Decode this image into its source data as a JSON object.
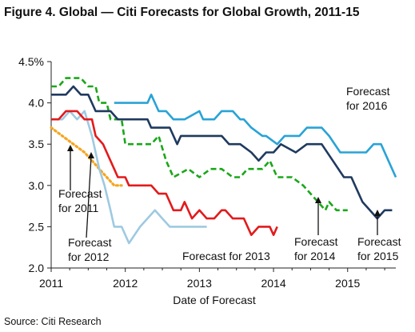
{
  "title": "Figure 4. Global — Citi Forecasts for Global Growth, 2011-15",
  "source": "Source: Citi Research",
  "chart_data": {
    "type": "line",
    "xlabel": "Date of Forecast",
    "ylabel": "",
    "xlim": [
      2011.0,
      2015.65
    ],
    "ylim": [
      2.0,
      4.5
    ],
    "x_ticks": [
      2011,
      2012,
      2013,
      2014,
      2015
    ],
    "x_tick_labels": [
      "2011",
      "2012",
      "2013",
      "2014",
      "2015"
    ],
    "y_ticks": [
      2.0,
      2.5,
      3.0,
      3.5,
      4.0,
      4.5
    ],
    "y_tick_labels": [
      "2.0",
      "2.5",
      "3.0",
      "3.5",
      "4.0",
      "4.5%"
    ],
    "series": [
      {
        "name": "Forecast for 2011",
        "color": "#f5a623",
        "style": "dotted",
        "points": [
          [
            2011.0,
            3.7
          ],
          [
            2011.15,
            3.6
          ],
          [
            2011.3,
            3.5
          ],
          [
            2011.45,
            3.4
          ],
          [
            2011.55,
            3.3
          ],
          [
            2011.65,
            3.2
          ],
          [
            2011.75,
            3.1
          ],
          [
            2011.85,
            3.0
          ],
          [
            2011.95,
            3.0
          ]
        ]
      },
      {
        "name": "Forecast for 2012",
        "color": "#9ecae1",
        "style": "solid",
        "points": [
          [
            2011.0,
            3.8
          ],
          [
            2011.15,
            3.8
          ],
          [
            2011.25,
            3.9
          ],
          [
            2011.35,
            3.8
          ],
          [
            2011.45,
            3.9
          ],
          [
            2011.55,
            3.6
          ],
          [
            2011.65,
            3.2
          ],
          [
            2011.72,
            3.0
          ],
          [
            2011.8,
            2.7
          ],
          [
            2011.85,
            2.5
          ],
          [
            2011.95,
            2.5
          ],
          [
            2012.05,
            2.3
          ],
          [
            2012.2,
            2.5
          ],
          [
            2012.4,
            2.7
          ],
          [
            2012.5,
            2.6
          ],
          [
            2012.6,
            2.5
          ],
          [
            2012.8,
            2.5
          ],
          [
            2013.0,
            2.5
          ],
          [
            2013.1,
            2.5
          ]
        ]
      },
      {
        "name": "Forecast for 2013",
        "color": "#e31a1c",
        "style": "solid",
        "points": [
          [
            2011.0,
            3.8
          ],
          [
            2011.1,
            3.8
          ],
          [
            2011.2,
            3.9
          ],
          [
            2011.35,
            3.9
          ],
          [
            2011.45,
            3.8
          ],
          [
            2011.55,
            3.8
          ],
          [
            2011.6,
            3.6
          ],
          [
            2011.7,
            3.5
          ],
          [
            2011.75,
            3.4
          ],
          [
            2011.85,
            3.2
          ],
          [
            2011.9,
            3.1
          ],
          [
            2012.0,
            3.1
          ],
          [
            2012.05,
            3.0
          ],
          [
            2012.35,
            3.0
          ],
          [
            2012.45,
            2.9
          ],
          [
            2012.55,
            2.9
          ],
          [
            2012.65,
            2.7
          ],
          [
            2012.75,
            2.7
          ],
          [
            2012.8,
            2.8
          ],
          [
            2012.9,
            2.6
          ],
          [
            2013.0,
            2.7
          ],
          [
            2013.1,
            2.6
          ],
          [
            2013.2,
            2.6
          ],
          [
            2013.3,
            2.7
          ],
          [
            2013.35,
            2.7
          ],
          [
            2013.45,
            2.6
          ],
          [
            2013.6,
            2.6
          ],
          [
            2013.7,
            2.4
          ],
          [
            2013.8,
            2.5
          ],
          [
            2013.95,
            2.5
          ],
          [
            2014.0,
            2.4
          ],
          [
            2014.05,
            2.5
          ]
        ]
      },
      {
        "name": "Forecast for 2014",
        "color": "#1aa71a",
        "style": "dashed",
        "points": [
          [
            2011.0,
            4.2
          ],
          [
            2011.1,
            4.2
          ],
          [
            2011.2,
            4.3
          ],
          [
            2011.4,
            4.3
          ],
          [
            2011.5,
            4.2
          ],
          [
            2011.6,
            4.2
          ],
          [
            2011.65,
            4.0
          ],
          [
            2011.75,
            4.0
          ],
          [
            2011.8,
            3.8
          ],
          [
            2011.95,
            3.8
          ],
          [
            2012.0,
            3.5
          ],
          [
            2012.35,
            3.5
          ],
          [
            2012.45,
            3.6
          ],
          [
            2012.55,
            3.3
          ],
          [
            2012.65,
            3.1
          ],
          [
            2012.85,
            3.2
          ],
          [
            2013.0,
            3.1
          ],
          [
            2013.15,
            3.2
          ],
          [
            2013.3,
            3.2
          ],
          [
            2013.45,
            3.1
          ],
          [
            2013.55,
            3.1
          ],
          [
            2013.65,
            3.2
          ],
          [
            2013.75,
            3.2
          ],
          [
            2013.85,
            3.2
          ],
          [
            2013.95,
            3.3
          ],
          [
            2014.05,
            3.1
          ],
          [
            2014.25,
            3.1
          ],
          [
            2014.4,
            3.0
          ],
          [
            2014.5,
            2.9
          ],
          [
            2014.6,
            2.8
          ],
          [
            2014.7,
            2.7
          ],
          [
            2014.75,
            2.8
          ],
          [
            2014.85,
            2.7
          ],
          [
            2015.0,
            2.7
          ]
        ]
      },
      {
        "name": "Forecast for 2015",
        "color": "#1f3a5f",
        "style": "solid",
        "points": [
          [
            2011.0,
            4.1
          ],
          [
            2011.2,
            4.1
          ],
          [
            2011.3,
            4.2
          ],
          [
            2011.4,
            4.1
          ],
          [
            2011.5,
            4.1
          ],
          [
            2011.6,
            3.9
          ],
          [
            2011.8,
            3.9
          ],
          [
            2011.9,
            3.8
          ],
          [
            2012.15,
            3.8
          ],
          [
            2012.3,
            3.8
          ],
          [
            2012.35,
            3.7
          ],
          [
            2012.6,
            3.7
          ],
          [
            2012.7,
            3.5
          ],
          [
            2012.75,
            3.6
          ],
          [
            2013.3,
            3.6
          ],
          [
            2013.4,
            3.5
          ],
          [
            2013.55,
            3.5
          ],
          [
            2013.7,
            3.4
          ],
          [
            2013.8,
            3.3
          ],
          [
            2013.9,
            3.4
          ],
          [
            2014.0,
            3.4
          ],
          [
            2014.1,
            3.5
          ],
          [
            2014.3,
            3.4
          ],
          [
            2014.45,
            3.5
          ],
          [
            2014.65,
            3.5
          ],
          [
            2014.8,
            3.3
          ],
          [
            2014.95,
            3.1
          ],
          [
            2015.05,
            3.1
          ],
          [
            2015.1,
            3.0
          ],
          [
            2015.2,
            2.8
          ],
          [
            2015.3,
            2.7
          ],
          [
            2015.4,
            2.6
          ],
          [
            2015.5,
            2.7
          ],
          [
            2015.6,
            2.7
          ]
        ]
      },
      {
        "name": "Forecast for 2016",
        "color": "#29a3d6",
        "style": "solid",
        "points": [
          [
            2011.85,
            4.0
          ],
          [
            2012.05,
            4.0
          ],
          [
            2012.15,
            4.0
          ],
          [
            2012.3,
            4.0
          ],
          [
            2012.35,
            4.1
          ],
          [
            2012.45,
            3.9
          ],
          [
            2012.55,
            3.9
          ],
          [
            2012.65,
            3.8
          ],
          [
            2012.8,
            3.8
          ],
          [
            2013.0,
            3.9
          ],
          [
            2013.05,
            3.8
          ],
          [
            2013.2,
            3.8
          ],
          [
            2013.3,
            3.9
          ],
          [
            2013.45,
            3.9
          ],
          [
            2013.55,
            3.8
          ],
          [
            2013.6,
            3.8
          ],
          [
            2013.7,
            3.7
          ],
          [
            2013.85,
            3.6
          ],
          [
            2013.9,
            3.6
          ],
          [
            2014.05,
            3.5
          ],
          [
            2014.15,
            3.6
          ],
          [
            2014.35,
            3.6
          ],
          [
            2014.45,
            3.7
          ],
          [
            2014.55,
            3.7
          ],
          [
            2014.65,
            3.7
          ],
          [
            2014.75,
            3.6
          ],
          [
            2014.9,
            3.4
          ],
          [
            2015.0,
            3.4
          ],
          [
            2015.25,
            3.4
          ],
          [
            2015.35,
            3.5
          ],
          [
            2015.45,
            3.5
          ],
          [
            2015.55,
            3.3
          ],
          [
            2015.65,
            3.1
          ]
        ]
      }
    ],
    "annotations": [
      {
        "series": 0,
        "lines": [
          "Forecast",
          "for 2011"
        ]
      },
      {
        "series": 1,
        "lines": [
          "Forecast",
          "for 2012"
        ]
      },
      {
        "series": 2,
        "lines": [
          "Forecast for 2013"
        ]
      },
      {
        "series": 3,
        "lines": [
          "Forecast",
          "for 2014"
        ]
      },
      {
        "series": 4,
        "lines": [
          "Forecast",
          "for 2015"
        ]
      },
      {
        "series": 5,
        "lines": [
          "Forecast",
          "for 2016"
        ]
      }
    ],
    "grid": false,
    "legend": "none"
  }
}
